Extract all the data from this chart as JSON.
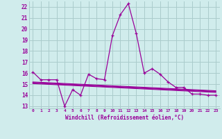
{
  "xlabel": "Windchill (Refroidissement éolien,°C)",
  "hours": [
    0,
    1,
    2,
    3,
    4,
    5,
    6,
    7,
    8,
    9,
    10,
    11,
    12,
    13,
    14,
    15,
    16,
    17,
    18,
    19,
    20,
    21,
    22,
    23
  ],
  "main_series": [
    16.1,
    15.4,
    15.4,
    15.4,
    13.0,
    14.5,
    14.0,
    15.9,
    15.5,
    15.4,
    19.4,
    21.3,
    22.3,
    19.6,
    16.0,
    16.4,
    15.9,
    15.2,
    14.7,
    14.7,
    14.1,
    14.1,
    14.0,
    14.0
  ],
  "flat_lines": [
    {
      "x": [
        0,
        23
      ],
      "y": [
        15.2,
        14.4
      ]
    },
    {
      "x": [
        0,
        23
      ],
      "y": [
        15.15,
        14.35
      ]
    },
    {
      "x": [
        0,
        23
      ],
      "y": [
        15.1,
        14.3
      ]
    },
    {
      "x": [
        0,
        23
      ],
      "y": [
        15.05,
        14.25
      ]
    }
  ],
  "line_color": "#990099",
  "bg_color": "#d0ecec",
  "grid_color": "#aacccc",
  "text_color": "#990099",
  "ylim": [
    12.8,
    22.5
  ],
  "yticks": [
    13,
    14,
    15,
    16,
    17,
    18,
    19,
    20,
    21,
    22
  ],
  "xlim": [
    -0.5,
    23.5
  ]
}
